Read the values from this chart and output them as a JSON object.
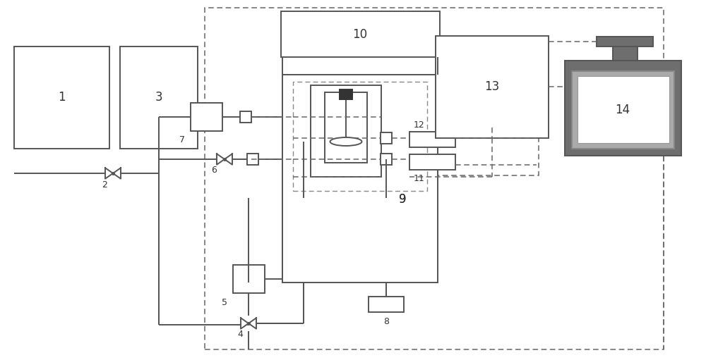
{
  "bg": "#ffffff",
  "lc": "#555555",
  "dc": "#666666",
  "lw": 1.4,
  "dlw": 1.1,
  "figsize": [
    10.0,
    5.11
  ],
  "dpi": 100
}
